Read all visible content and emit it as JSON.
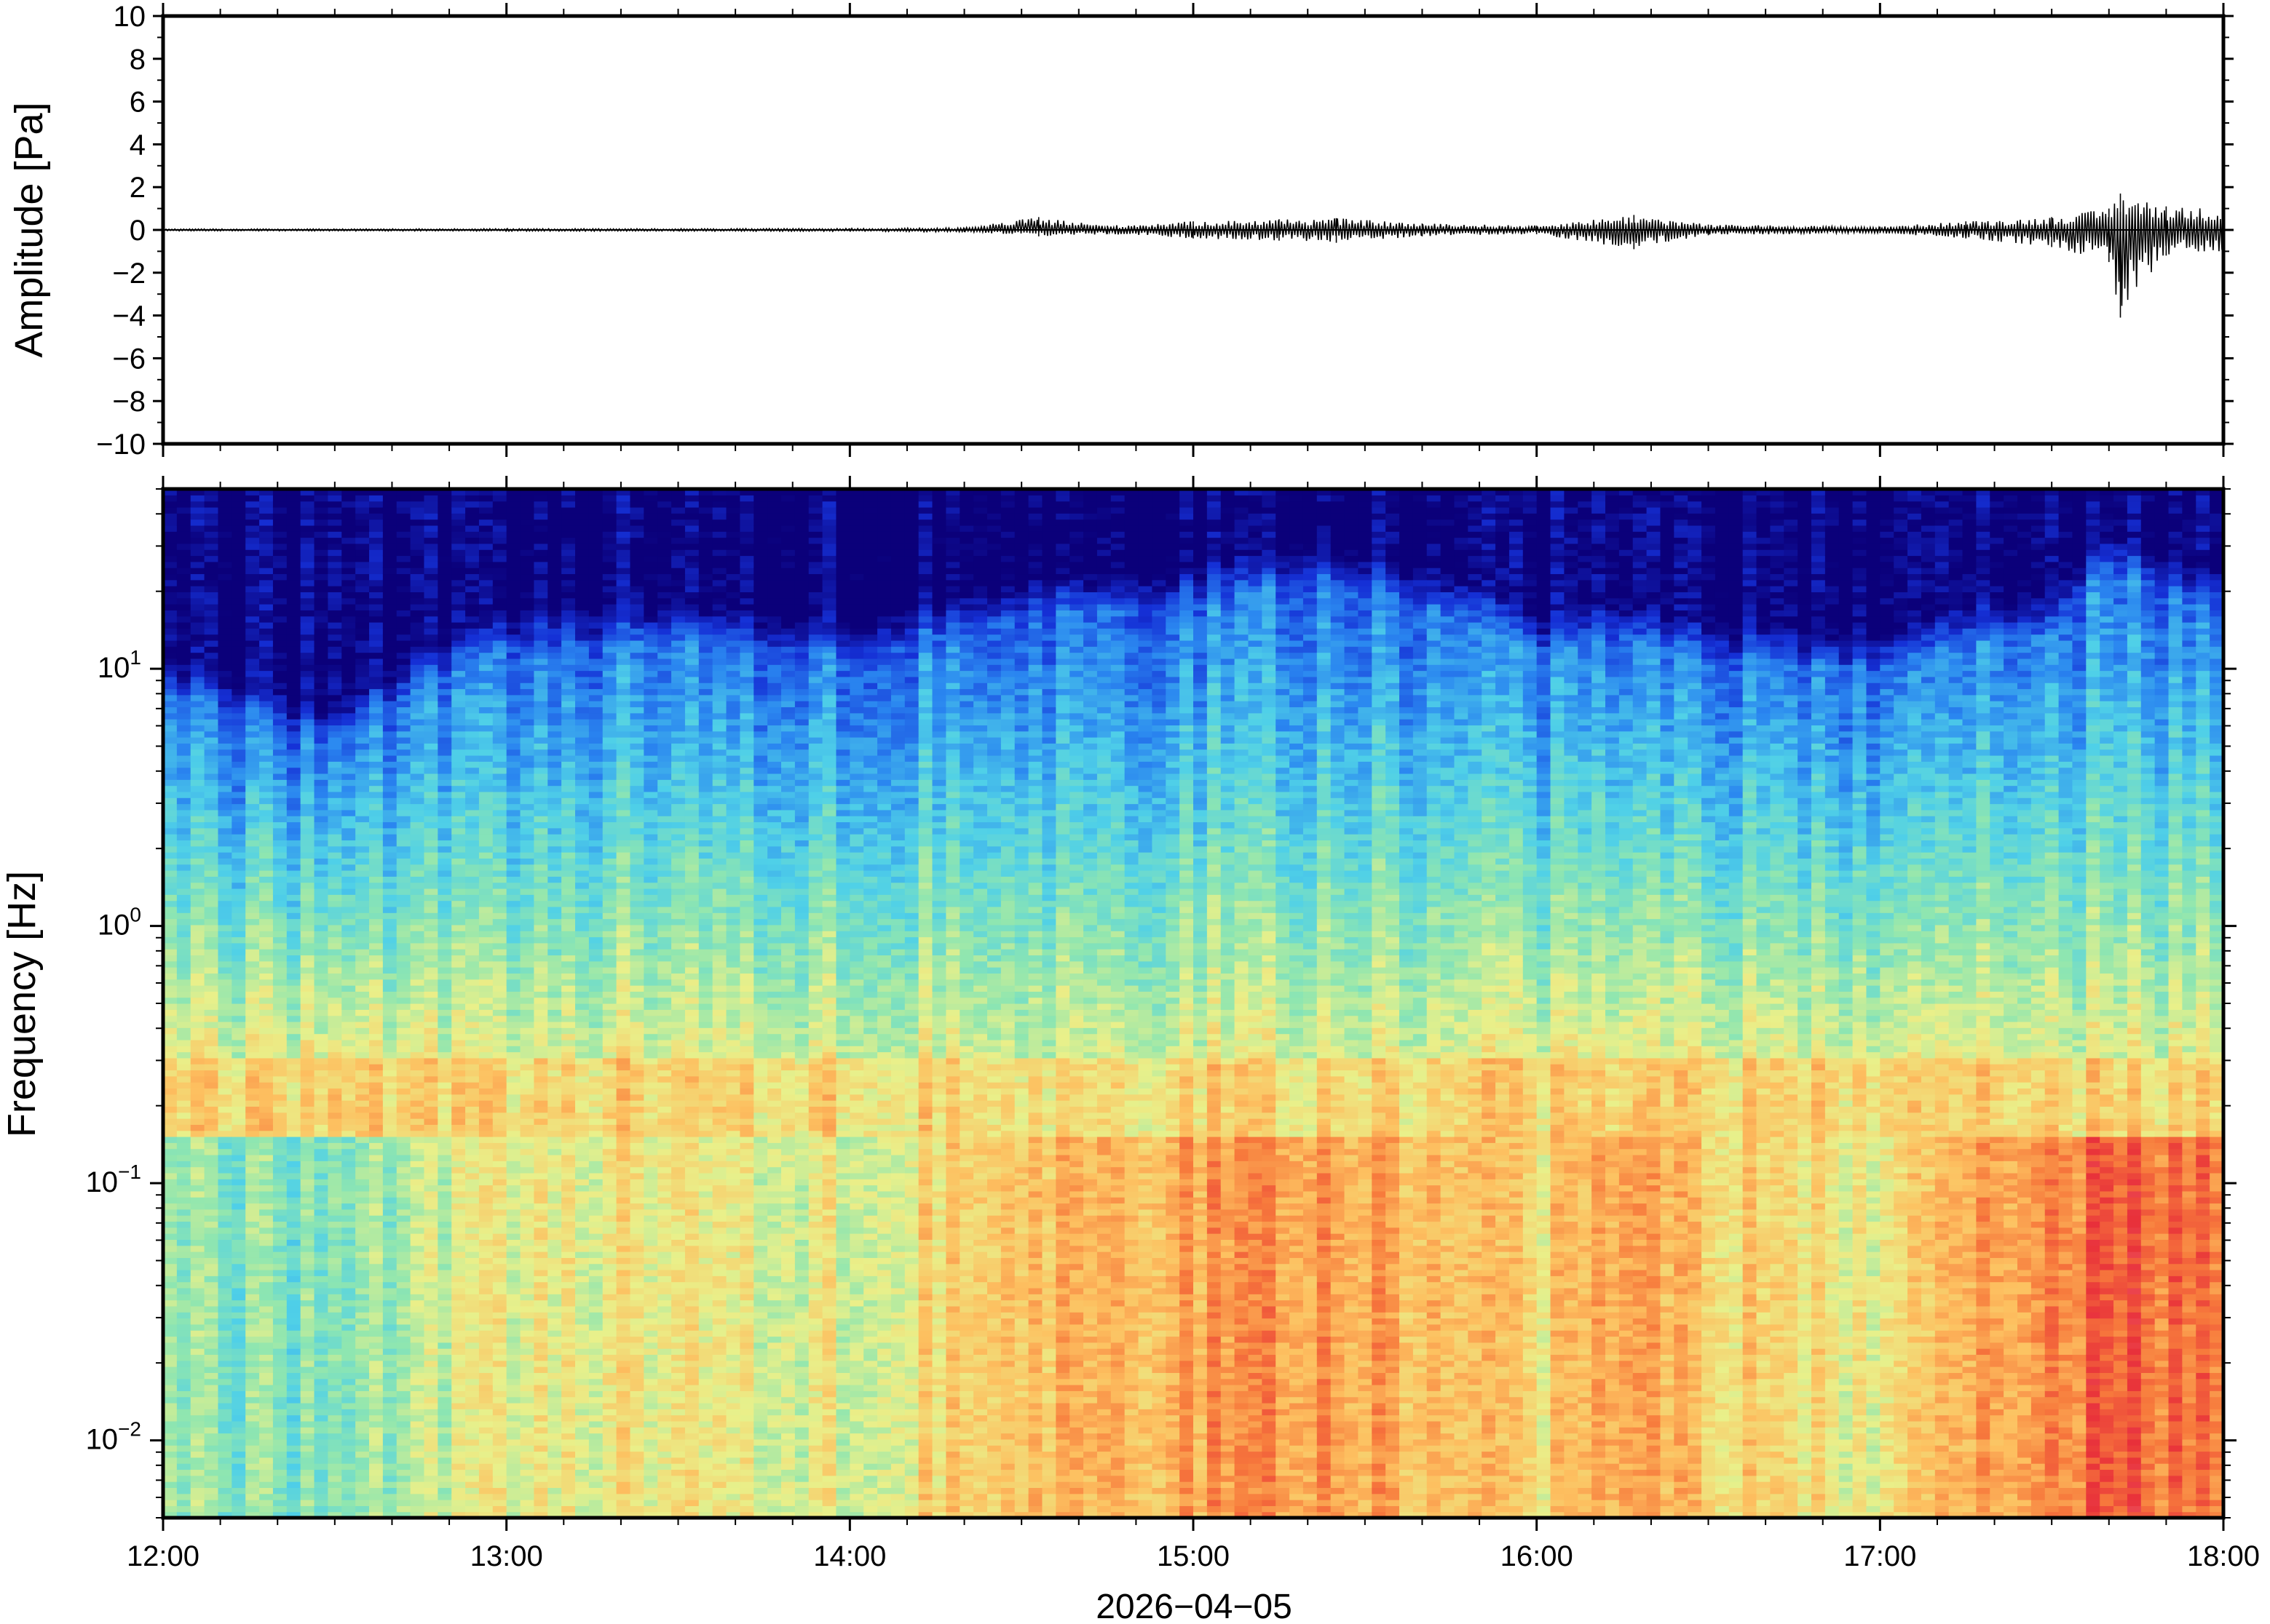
{
  "chart_data": [
    {
      "type": "line",
      "ylabel": "Amplitude [Pa]",
      "ylim": [
        -10,
        10
      ],
      "yticks": [
        "10",
        "8",
        "6",
        "4",
        "2",
        "0",
        "−2",
        "−4",
        "−6",
        "−8",
        "−10"
      ],
      "xlim": [
        "12:00",
        "18:00"
      ],
      "series": [
        {
          "color": "#000000",
          "envelope_x": [
            "12:00",
            "12:30",
            "13:00",
            "13:30",
            "14:00",
            "14:20",
            "14:33",
            "14:45",
            "15:00",
            "15:15",
            "15:25",
            "15:40",
            "16:00",
            "16:17",
            "16:30",
            "17:00",
            "17:15",
            "17:30",
            "17:40",
            "17:42",
            "17:50",
            "18:00"
          ],
          "envelope_max": [
            0.05,
            0.05,
            0.06,
            0.06,
            0.07,
            0.1,
            0.6,
            0.2,
            0.4,
            0.5,
            0.55,
            0.3,
            0.2,
            0.7,
            0.25,
            0.15,
            0.4,
            0.6,
            1.0,
            1.7,
            1.1,
            1.0
          ],
          "envelope_min": [
            -0.05,
            -0.05,
            -0.06,
            -0.06,
            -0.07,
            -0.1,
            -0.3,
            -0.2,
            -0.4,
            -0.5,
            -0.6,
            -0.3,
            -0.2,
            -0.9,
            -0.25,
            -0.15,
            -0.4,
            -0.8,
            -1.5,
            -4.1,
            -1.2,
            -1.0
          ]
        }
      ]
    },
    {
      "type": "heatmap",
      "ylabel": "Frequency [Hz]",
      "xlabel": "2026−04−05",
      "xticks": [
        "12:00",
        "13:00",
        "14:00",
        "15:00",
        "16:00",
        "17:00",
        "18:00"
      ],
      "yticks": [
        {
          "value": 0.01,
          "base": "10",
          "exp": "−2"
        },
        {
          "value": 0.1,
          "base": "10",
          "exp": "−1"
        },
        {
          "value": 1,
          "base": "10",
          "exp": "0"
        },
        {
          "value": 10,
          "base": "10",
          "exp": "1"
        }
      ],
      "y_scale": "log",
      "ylim": [
        0.005,
        50
      ],
      "xlim": [
        "12:00",
        "18:00"
      ],
      "colormap": [
        "#0b007a",
        "#1530d6",
        "#2a86f0",
        "#4fd0e8",
        "#8fe6b0",
        "#e9f08a",
        "#fdc060",
        "#f77a3c",
        "#e8303a",
        "#f898a0"
      ],
      "description_fields": {
        "columns_time": [
          "12:00",
          "12:30",
          "13:00",
          "13:30",
          "14:00",
          "14:30",
          "15:00",
          "15:20",
          "15:40",
          "16:00",
          "16:15",
          "16:30",
          "17:00",
          "17:15",
          "17:30",
          "17:40",
          "17:50",
          "18:00"
        ],
        "upper_energy_edge_hz": [
          8,
          5,
          12,
          13,
          11,
          16,
          18,
          22,
          18,
          12,
          13,
          11,
          10,
          13,
          14,
          25,
          20,
          17
        ],
        "low_freq_level": [
          0.28,
          0.2,
          0.5,
          0.5,
          0.45,
          0.7,
          0.75,
          0.8,
          0.7,
          0.55,
          0.75,
          0.6,
          0.5,
          0.7,
          0.8,
          0.95,
          0.9,
          0.85
        ]
      }
    }
  ]
}
